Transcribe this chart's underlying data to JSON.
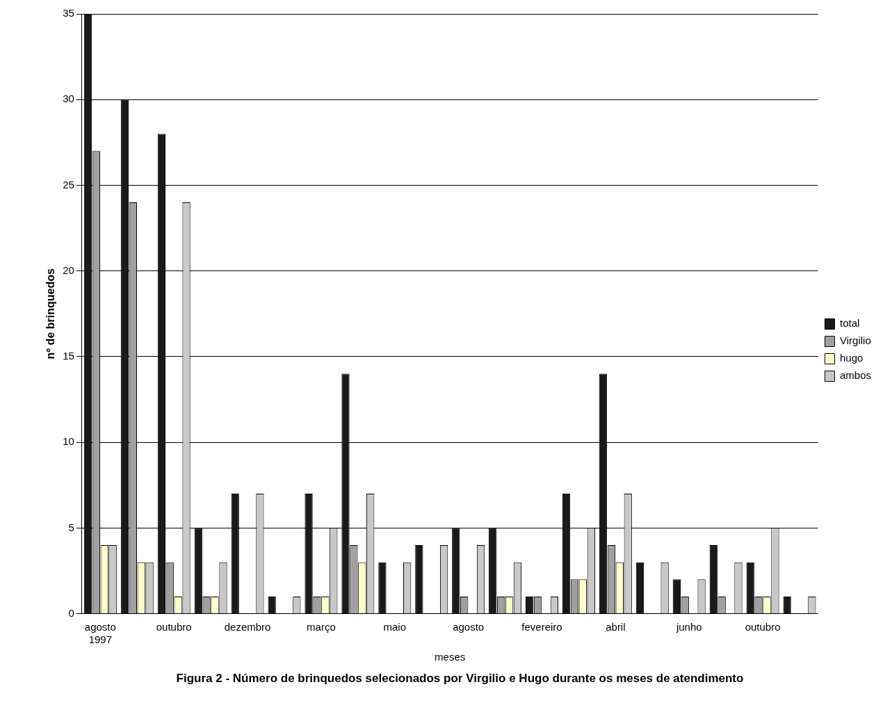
{
  "chart_data": {
    "type": "bar",
    "title": "Figura 2 - Número de brinquedos selecionados por Virgilio e Hugo durante os meses de atendimento",
    "xlabel": "meses",
    "ylabel": "nº de brinquedos",
    "categories": [
      "agosto 1997",
      null,
      "outubro",
      null,
      "dezembro",
      null,
      "março",
      null,
      "maio",
      null,
      "agosto",
      null,
      "fevereiro",
      null,
      "abril",
      null,
      "junho",
      null,
      "outubro",
      null
    ],
    "series": [
      {
        "name": "total",
        "color": "#1a1a1a",
        "values": [
          35,
          30,
          28,
          5,
          7,
          1,
          7,
          14,
          3,
          4,
          5,
          5,
          1,
          7,
          14,
          3,
          2,
          4,
          3,
          1
        ]
      },
      {
        "name": "Virgilio",
        "color": "#a0a0a0",
        "values": [
          27,
          24,
          3,
          1,
          0,
          0,
          1,
          4,
          0,
          0,
          1,
          1,
          1,
          2,
          4,
          0,
          1,
          1,
          1,
          0
        ]
      },
      {
        "name": "hugo",
        "color": "#ffffcc",
        "values": [
          4,
          3,
          1,
          1,
          0,
          0,
          1,
          3,
          0,
          0,
          0,
          1,
          0,
          2,
          3,
          0,
          0,
          0,
          1,
          0
        ]
      },
      {
        "name": "ambos",
        "color": "#c8c8c8",
        "values": [
          4,
          3,
          24,
          3,
          7,
          1,
          5,
          7,
          3,
          4,
          4,
          3,
          1,
          5,
          7,
          3,
          2,
          3,
          5,
          1
        ]
      }
    ],
    "ylim": [
      0,
      35
    ],
    "yticks": [
      0,
      5,
      10,
      15,
      20,
      25,
      30,
      35
    ],
    "grid": "y",
    "legend": "right"
  }
}
